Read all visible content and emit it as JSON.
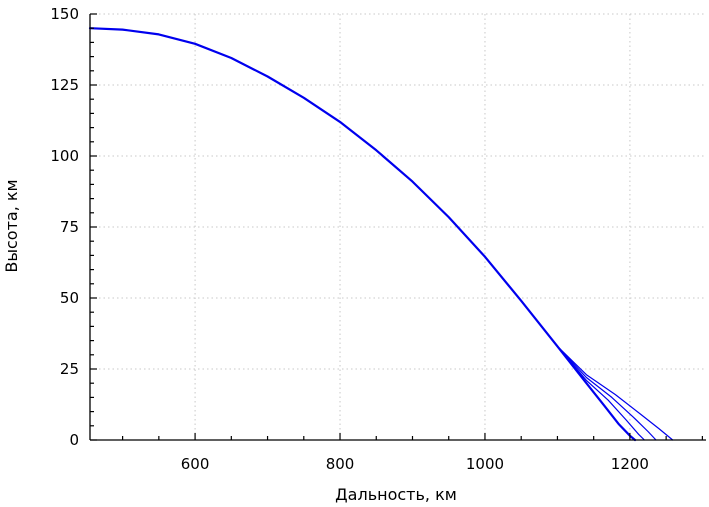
{
  "chart_data": {
    "type": "line",
    "title": "",
    "xlabel": "Дальность, км",
    "ylabel": "Высота, км",
    "xlim": [
      455,
      1305
    ],
    "ylim": [
      0,
      150
    ],
    "x_ticks": [
      600,
      800,
      1000,
      1200
    ],
    "y_ticks": [
      0,
      25,
      50,
      75,
      100,
      125,
      150
    ],
    "x_tick_labels": [
      "600",
      "800",
      "1000",
      "1200"
    ],
    "y_tick_labels": [
      "0",
      "25",
      "50",
      "75",
      "100",
      "125",
      "150"
    ],
    "grid": true,
    "legend": "none",
    "line_color": "#0000ee",
    "series": [
      {
        "x": [
          455,
          500,
          550,
          600,
          650,
          700,
          750,
          800,
          850,
          900,
          950,
          1000,
          1050,
          1100,
          1140,
          1165,
          1185,
          1200,
          1207
        ],
        "y": [
          145,
          144.5,
          142.8,
          139.5,
          134.5,
          128,
          120.5,
          112,
          102,
          91,
          78.5,
          64.5,
          49,
          33,
          20,
          12,
          5.5,
          1.5,
          0
        ]
      },
      {
        "x": [
          455,
          500,
          550,
          600,
          650,
          700,
          750,
          800,
          850,
          900,
          950,
          1000,
          1050,
          1100,
          1140,
          1170,
          1195,
          1212,
          1220
        ],
        "y": [
          145,
          144.5,
          142.8,
          139.5,
          134.5,
          128,
          120.5,
          112,
          102,
          91,
          78.5,
          64.5,
          49,
          33,
          21,
          14,
          7,
          2,
          0
        ]
      },
      {
        "x": [
          455,
          500,
          550,
          600,
          650,
          700,
          750,
          800,
          850,
          900,
          950,
          1000,
          1050,
          1100,
          1140,
          1175,
          1205,
          1225,
          1236
        ],
        "y": [
          145,
          144.5,
          142.8,
          139.5,
          134.5,
          128,
          120.5,
          112,
          102,
          91,
          78.5,
          64.5,
          49,
          33,
          22,
          15,
          8,
          3,
          0
        ]
      },
      {
        "x": [
          455,
          500,
          550,
          600,
          650,
          700,
          750,
          800,
          850,
          900,
          950,
          1000,
          1050,
          1100,
          1140,
          1180,
          1215,
          1240,
          1259
        ],
        "y": [
          145,
          144.5,
          142.8,
          139.5,
          134.5,
          128,
          120.5,
          112,
          102,
          91,
          78.5,
          64.5,
          49,
          33,
          23,
          16,
          9,
          4,
          0
        ]
      }
    ]
  }
}
